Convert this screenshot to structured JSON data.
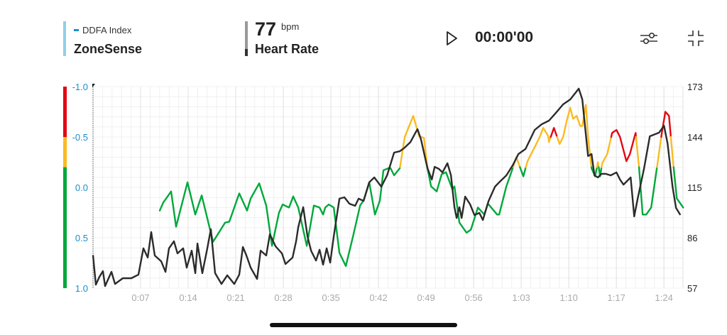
{
  "header": {
    "zonesense": {
      "legend_label": "DDFA Index",
      "title": "ZoneSense",
      "accent": "#8ecfe6",
      "legend_color": "#1a8fc9"
    },
    "heart_rate": {
      "value": "77",
      "unit": "bpm",
      "title": "Heart Rate"
    },
    "player": {
      "play_icon": "play-icon",
      "time": "00:00'00"
    },
    "actions": {
      "settings_icon": "sliders-icon",
      "collapse_icon": "collapse-icon"
    }
  },
  "chart_data": {
    "type": "line",
    "x_ticks": [
      "0:07",
      "0:14",
      "0:21",
      "0:28",
      "0:35",
      "0:42",
      "0:49",
      "0:56",
      "1:03",
      "1:10",
      "1:17",
      "1:24"
    ],
    "x_tick_minutes": [
      7,
      14,
      21,
      28,
      35,
      42,
      49,
      56,
      63,
      70,
      77,
      84
    ],
    "xlim_minutes": [
      0,
      86.8
    ],
    "left_axis": {
      "ticks": [
        "-1.0",
        "-0.5",
        "0.0",
        "0.5",
        "1.0"
      ],
      "tick_values": [
        -1,
        -0.5,
        0,
        0.5,
        1
      ],
      "ylim": [
        -1,
        1
      ],
      "inverted": true,
      "color": "#1a8fc9"
    },
    "right_axis": {
      "ticks": [
        "173",
        "144",
        "115",
        "86",
        "57"
      ],
      "tick_values": [
        173,
        144,
        115,
        86,
        57
      ],
      "ylim": [
        57,
        173
      ]
    },
    "zones": [
      {
        "from": -1.0,
        "to": -0.5,
        "color": "#e30613"
      },
      {
        "from": -0.5,
        "to": -0.2,
        "color": "#fbbb21"
      },
      {
        "from": -0.2,
        "to": 1.0,
        "color": "#00a83b"
      }
    ],
    "grid": true,
    "series": [
      {
        "axis": "left",
        "colored_by_zone": true,
        "x": [
          9.82,
          10.34,
          10.87,
          11.49,
          12.22,
          13.9,
          15.05,
          15.99,
          17.66,
          19.43,
          20.06,
          21.52,
          22.67,
          23.2,
          24.45,
          25.49,
          26.33,
          27.37,
          27.9,
          28.84,
          29.46,
          30.2,
          31.45,
          32.49,
          33.33,
          33.85,
          34.17,
          34.69,
          35.42,
          36.26,
          37.2,
          38.24,
          39.29,
          39.81,
          40.64,
          41.48,
          42.21,
          42.73,
          43.47,
          43.78,
          44.3,
          45.14,
          45.87,
          47.12,
          47.96,
          48.69,
          49.21,
          49.74,
          50.57,
          51.3,
          51.93,
          52.87,
          53.18,
          53.91,
          54.96,
          55.59,
          56.63,
          57.57,
          58.09,
          59.45,
          59.76,
          60.81,
          61.75,
          62.27,
          63.32,
          63.63,
          63.94,
          64.99,
          65.72,
          66.24,
          66.97,
          67.08,
          67.81,
          68.65,
          69.17,
          69.69,
          70.21,
          70.63,
          71.15,
          71.68,
          71.99,
          72.51,
          72.83,
          73.35,
          73.87,
          74.29,
          74.6,
          74.92,
          75.65,
          76.38,
          77.01,
          77.53,
          78.47,
          78.99,
          79.83,
          80.35,
          80.87,
          81.39,
          82.12,
          82.96,
          83.69,
          84.21,
          84.74,
          85.26,
          85.89,
          86.83
        ],
        "y": [
          0.23,
          0.15,
          0.1,
          0.04,
          0.39,
          -0.05,
          0.27,
          0.08,
          0.54,
          0.35,
          0.34,
          0.06,
          0.23,
          0.11,
          -0.04,
          0.18,
          0.58,
          0.25,
          0.17,
          0.2,
          0.09,
          0.2,
          0.58,
          0.18,
          0.2,
          0.27,
          0.2,
          0.17,
          0.2,
          0.65,
          0.78,
          0.49,
          0.18,
          0.13,
          -0.05,
          0.27,
          0.13,
          -0.17,
          -0.19,
          -0.19,
          -0.12,
          -0.19,
          -0.5,
          -0.71,
          -0.51,
          -0.49,
          -0.19,
          -0.01,
          0.04,
          -0.13,
          -0.15,
          0.02,
          -0.01,
          0.35,
          0.45,
          0.42,
          0.2,
          0.27,
          0.16,
          0.27,
          0.27,
          -0.01,
          -0.19,
          -0.3,
          -0.11,
          -0.19,
          -0.26,
          -0.4,
          -0.5,
          -0.59,
          -0.51,
          -0.45,
          -0.59,
          -0.43,
          -0.5,
          -0.66,
          -0.79,
          -0.68,
          -0.71,
          -0.61,
          -0.61,
          -0.82,
          -0.5,
          -0.19,
          -0.11,
          -0.25,
          -0.11,
          -0.24,
          -0.33,
          -0.54,
          -0.57,
          -0.5,
          -0.26,
          -0.33,
          -0.54,
          -0.19,
          0.27,
          0.27,
          0.2,
          -0.19,
          -0.54,
          -0.75,
          -0.71,
          -0.31,
          0.11,
          0.2
        ]
      },
      {
        "axis": "right",
        "color": "#2b2b2b",
        "x": [
          0,
          0.42,
          0.94,
          1.46,
          1.78,
          2.72,
          3.24,
          4.39,
          5.64,
          6.69,
          7.42,
          8.05,
          8.57,
          9.09,
          10.03,
          10.66,
          11.18,
          11.91,
          12.43,
          13.27,
          13.79,
          14.52,
          15.05,
          15.36,
          16.09,
          16.82,
          17.34,
          17.97,
          18.91,
          19.75,
          20.79,
          21.52,
          22.05,
          22.57,
          23.2,
          24.14,
          24.66,
          25.49,
          26.02,
          26.85,
          27.79,
          28.32,
          29.36,
          29.88,
          30.2,
          30.93,
          31.55,
          32.08,
          32.81,
          33.33,
          33.85,
          34.38,
          34.9,
          35.42,
          36.26,
          36.99,
          37.72,
          38.56,
          39.08,
          39.81,
          40.64,
          41.38,
          42.42,
          43.26,
          44.3,
          45.14,
          45.87,
          46.71,
          47.44,
          47.75,
          48.27,
          49.21,
          49.84,
          50.26,
          50.89,
          51.41,
          52.14,
          52.66,
          53.18,
          53.5,
          53.91,
          54.23,
          54.75,
          55.48,
          56.11,
          56.84,
          57.36,
          58.2,
          59.14,
          59.76,
          60.81,
          61.75,
          62.59,
          63.63,
          64.99,
          66.03,
          67.08,
          68.02,
          69.17,
          70.21,
          71.47,
          71.99,
          72.3,
          72.83,
          73.35,
          73.77,
          74.29,
          74.81,
          75.44,
          76.17,
          77.01,
          77.53,
          78.05,
          79.1,
          79.62,
          80.14,
          81.08,
          81.92,
          83.28,
          84.01,
          84.53,
          85.26,
          85.78,
          86.41
        ],
        "y": [
          76,
          59,
          63.5,
          66.8,
          58.2,
          66.4,
          59.4,
          62.7,
          62.7,
          64.8,
          79.9,
          74.6,
          89.3,
          75.8,
          72.5,
          66.4,
          79.9,
          84,
          77,
          79.9,
          68.8,
          78.6,
          65.6,
          82.7,
          65.6,
          79.9,
          90.9,
          65.6,
          59.4,
          64.4,
          59.4,
          64.8,
          80.7,
          75.8,
          68.8,
          62.3,
          78.6,
          75.8,
          88,
          81.1,
          77,
          70.9,
          74.6,
          84,
          92.1,
          103.6,
          86.8,
          78.6,
          72.9,
          79.1,
          70.5,
          79.9,
          71.7,
          86.8,
          108.5,
          109.3,
          105.6,
          104.4,
          108.5,
          107.2,
          117.9,
          120.7,
          115.4,
          121.9,
          135,
          135.8,
          137.9,
          141.1,
          146.5,
          148.5,
          142.4,
          126,
          119.5,
          126.8,
          125.6,
          123.6,
          128.9,
          121.9,
          103.6,
          97.4,
          103.6,
          97.4,
          109.7,
          105.2,
          99.1,
          100.3,
          96.2,
          107.2,
          115.4,
          117.9,
          121.9,
          127.7,
          134.2,
          137.1,
          148.1,
          151.4,
          153.4,
          157.5,
          162.8,
          165.6,
          171.8,
          165.6,
          153.4,
          133,
          134.2,
          121.9,
          120.7,
          122.8,
          122.8,
          121.9,
          123.6,
          119.5,
          116.6,
          120.7,
          98.3,
          108.5,
          126,
          144.4,
          146.5,
          150.5,
          140.3,
          115.4,
          103.2,
          99.1
        ]
      }
    ]
  }
}
